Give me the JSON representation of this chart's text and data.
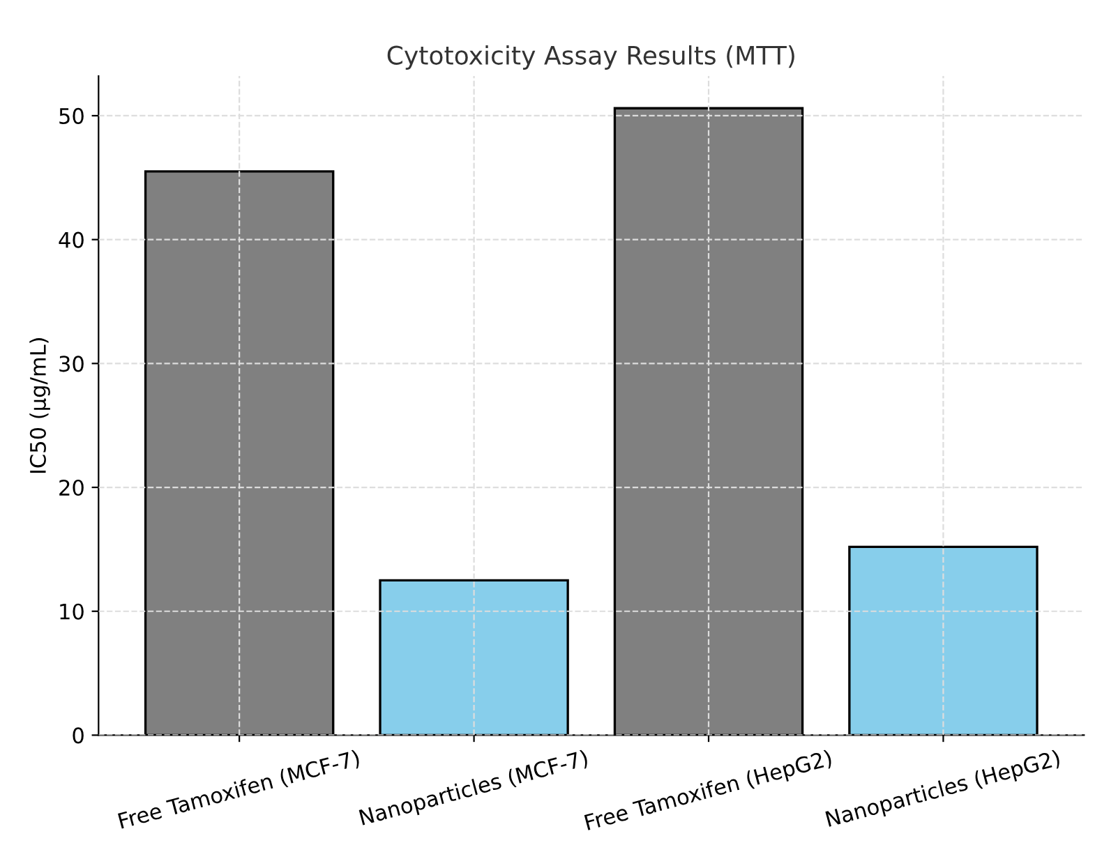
{
  "chart_data": {
    "type": "bar",
    "title": "Cytotoxicity Assay Results (MTT)",
    "ylabel": "IC50 (µg/mL)",
    "categories": [
      "Free Tamoxifen (MCF-7)",
      "Nanoparticles (MCF-7)",
      "Free Tamoxifen (HepG2)",
      "Nanoparticles (HepG2)"
    ],
    "values": [
      45.5,
      12.5,
      50.6,
      15.2
    ],
    "colors": [
      "#808080",
      "#87ceeb",
      "#808080",
      "#87ceeb"
    ],
    "ylim": [
      0,
      53.2
    ],
    "yticks": [
      0,
      10,
      20,
      30,
      40,
      50
    ],
    "grid": true
  }
}
